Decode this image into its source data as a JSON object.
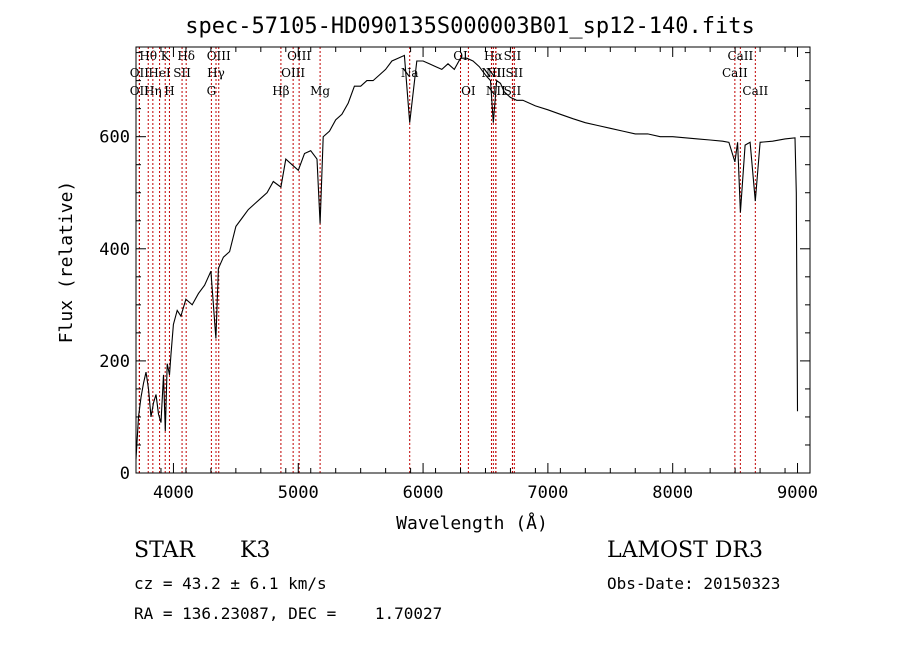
{
  "chart_data": {
    "type": "line",
    "title": "spec-57105-HD090135S000003B01_sp12-140.fits",
    "xlabel": "Wavelength (Å)",
    "ylabel": "Flux (relative)",
    "xlim": [
      3700,
      9100
    ],
    "ylim": [
      0,
      760
    ],
    "xticks": [
      4000,
      5000,
      6000,
      7000,
      8000,
      9000
    ],
    "yticks": [
      0,
      200,
      400,
      600
    ],
    "grid": false,
    "series": [
      {
        "x": [
          3700,
          3720,
          3740,
          3760,
          3780,
          3800,
          3820,
          3840,
          3860,
          3880,
          3900,
          3920,
          3935,
          3950,
          3968,
          3980,
          4000,
          4030,
          4060,
          4100,
          4150,
          4200,
          4250,
          4300,
          4340,
          4360,
          4380,
          4400,
          4450,
          4500,
          4550,
          4600,
          4650,
          4700,
          4750,
          4800,
          4861,
          4900,
          4950,
          5000,
          5050,
          5100,
          5150,
          5175,
          5200,
          5250,
          5300,
          5350,
          5400,
          5450,
          5500,
          5550,
          5600,
          5650,
          5700,
          5750,
          5800,
          5850,
          5893,
          5950,
          6000,
          6050,
          6100,
          6150,
          6200,
          6250,
          6300,
          6350,
          6400,
          6450,
          6500,
          6540,
          6563,
          6590,
          6620,
          6650,
          6700,
          6750,
          6800,
          6900,
          7000,
          7100,
          7200,
          7300,
          7400,
          7500,
          7600,
          7700,
          7800,
          7900,
          8000,
          8100,
          8200,
          8300,
          8400,
          8450,
          8498,
          8520,
          8542,
          8580,
          8620,
          8662,
          8700,
          8800,
          8900,
          8980,
          8990,
          9000
        ],
        "y": [
          25,
          100,
          135,
          160,
          180,
          150,
          100,
          125,
          140,
          105,
          90,
          175,
          75,
          195,
          175,
          210,
          265,
          290,
          280,
          310,
          300,
          320,
          335,
          360,
          240,
          365,
          375,
          385,
          395,
          440,
          455,
          470,
          480,
          490,
          500,
          520,
          510,
          560,
          550,
          540,
          570,
          575,
          560,
          445,
          600,
          610,
          630,
          640,
          660,
          690,
          690,
          700,
          700,
          710,
          720,
          735,
          740,
          745,
          625,
          735,
          735,
          730,
          725,
          720,
          730,
          720,
          740,
          740,
          735,
          725,
          710,
          700,
          625,
          700,
          695,
          680,
          670,
          665,
          665,
          655,
          648,
          640,
          632,
          625,
          620,
          615,
          610,
          605,
          605,
          600,
          600,
          598,
          596,
          594,
          592,
          590,
          555,
          590,
          465,
          585,
          590,
          485,
          590,
          592,
          596,
          598,
          500,
          110
        ]
      }
    ],
    "line_markers": [
      {
        "label": "Hθ",
        "x": 3798,
        "row": 0
      },
      {
        "label": "OII",
        "x": 3727,
        "row": 1
      },
      {
        "label": "OII",
        "x": 3727,
        "row": 2
      },
      {
        "label": "Hη",
        "x": 3835,
        "row": 2
      },
      {
        "label": "HeI",
        "x": 3889,
        "row": 1
      },
      {
        "label": "K",
        "x": 3934,
        "row": 0
      },
      {
        "label": "SII",
        "x": 4069,
        "row": 1
      },
      {
        "label": "H",
        "x": 3968,
        "row": 2
      },
      {
        "label": "Hδ",
        "x": 4102,
        "row": 0
      },
      {
        "label": "OIII",
        "x": 4363,
        "row": 0
      },
      {
        "label": "Hγ",
        "x": 4341,
        "row": 1
      },
      {
        "label": "G",
        "x": 4304,
        "row": 2
      },
      {
        "label": "Hβ",
        "x": 4861,
        "row": 2
      },
      {
        "label": "OIII",
        "x": 4959,
        "row": 1
      },
      {
        "label": "OIII",
        "x": 5007,
        "row": 0
      },
      {
        "label": "Mg",
        "x": 5175,
        "row": 2
      },
      {
        "label": "Na",
        "x": 5893,
        "row": 1
      },
      {
        "label": "OI",
        "x": 6300,
        "row": 0
      },
      {
        "label": "OI",
        "x": 6363,
        "row": 2
      },
      {
        "label": "Hα",
        "x": 6563,
        "row": 0
      },
      {
        "label": "NII",
        "x": 6548,
        "row": 1
      },
      {
        "label": "NII",
        "x": 6583,
        "row": 2
      },
      {
        "label": "NII",
        "x": 6583,
        "row": 1
      },
      {
        "label": "SII",
        "x": 6716,
        "row": 0
      },
      {
        "label": "SII",
        "x": 6716,
        "row": 2
      },
      {
        "label": "SII",
        "x": 6731,
        "row": 1
      },
      {
        "label": "CaII",
        "x": 8542,
        "row": 0
      },
      {
        "label": "CaII",
        "x": 8498,
        "row": 1
      },
      {
        "label": "CaII",
        "x": 8662,
        "row": 2
      }
    ]
  },
  "info": {
    "object_class": "STAR",
    "subclass": "K3",
    "survey": "LAMOST DR3",
    "redshift": "cz = 43.2 ± 6.1 km/s",
    "obs_date": "Obs-Date: 20150323",
    "coords": "RA = 136.23087, DEC =    1.70027"
  },
  "colors": {
    "marker_line": "#c00000",
    "spectrum": "#000000",
    "axes": "#000000"
  }
}
